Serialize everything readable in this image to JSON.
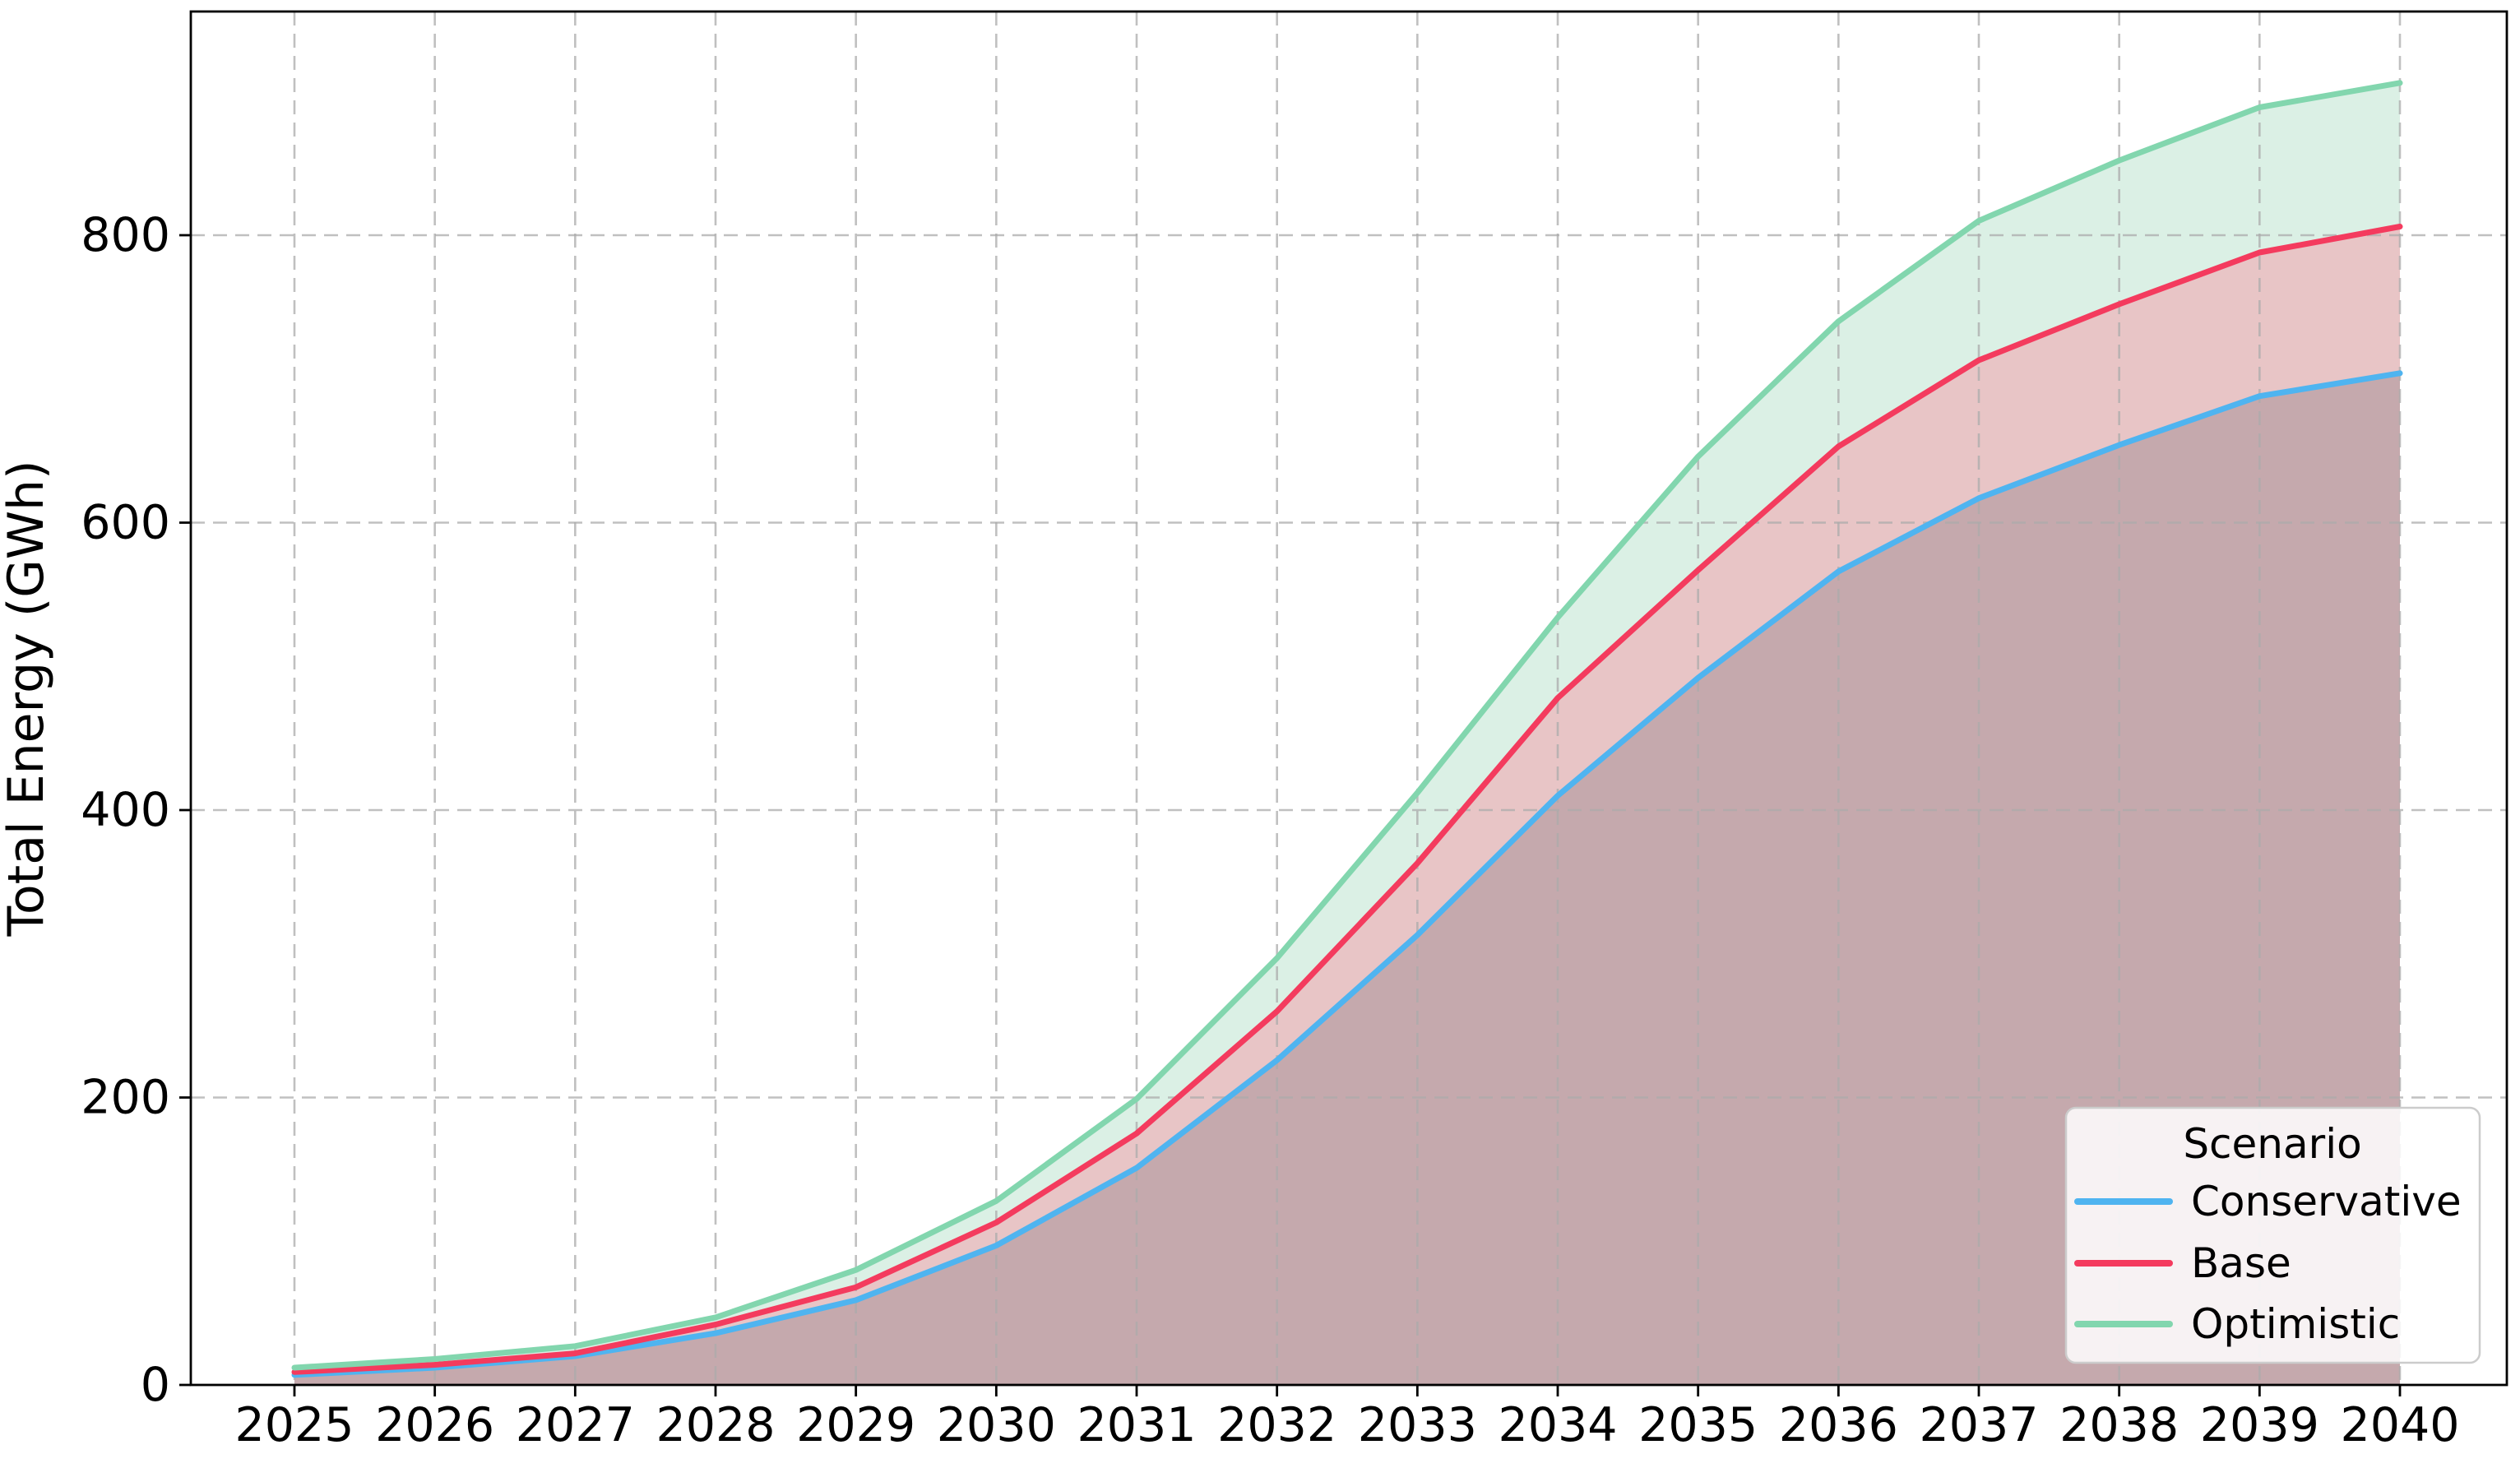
{
  "chart_data": {
    "type": "area",
    "title": "",
    "xlabel": "",
    "ylabel": "Total Energy (GWh)",
    "x": [
      2025,
      2026,
      2027,
      2028,
      2029,
      2030,
      2031,
      2032,
      2033,
      2034,
      2035,
      2036,
      2037,
      2038,
      2039,
      2040
    ],
    "xticks": [
      2025,
      2026,
      2027,
      2028,
      2029,
      2030,
      2031,
      2032,
      2033,
      2034,
      2035,
      2036,
      2037,
      2038,
      2039,
      2040
    ],
    "yticks": [
      0,
      200,
      400,
      600,
      800
    ],
    "ylim": [
      0,
      955
    ],
    "xlim": [
      2024.26,
      2040.76
    ],
    "grid": true,
    "legend": {
      "title": "Scenario",
      "position": "lower right"
    },
    "series": [
      {
        "name": "Conservative",
        "color": "#4FB4F0",
        "area_color": "#C5A9AD",
        "values": [
          7,
          12,
          20,
          36,
          59,
          97,
          151,
          226,
          313,
          410,
          492,
          566,
          617,
          654,
          688,
          704
        ]
      },
      {
        "name": "Base",
        "color": "#F43B5E",
        "area_color": "#E8C5C6",
        "values": [
          9,
          14,
          22,
          42,
          68,
          113,
          175,
          260,
          363,
          478,
          567,
          653,
          713,
          752,
          788,
          806
        ]
      },
      {
        "name": "Optimistic",
        "color": "#82D6AE",
        "area_color": "#DBF0E5",
        "values": [
          12,
          18,
          27,
          47,
          80,
          128,
          199,
          297,
          412,
          534,
          646,
          740,
          810,
          852,
          889,
          906
        ]
      }
    ]
  },
  "style": {
    "background": "#FFFFFF",
    "gridline_color": "#ABABAB",
    "spine_color": "#000000",
    "tick_color": "#000000",
    "legend_bg": "#FFFFFF",
    "legend_border": "#CCCCCC"
  }
}
